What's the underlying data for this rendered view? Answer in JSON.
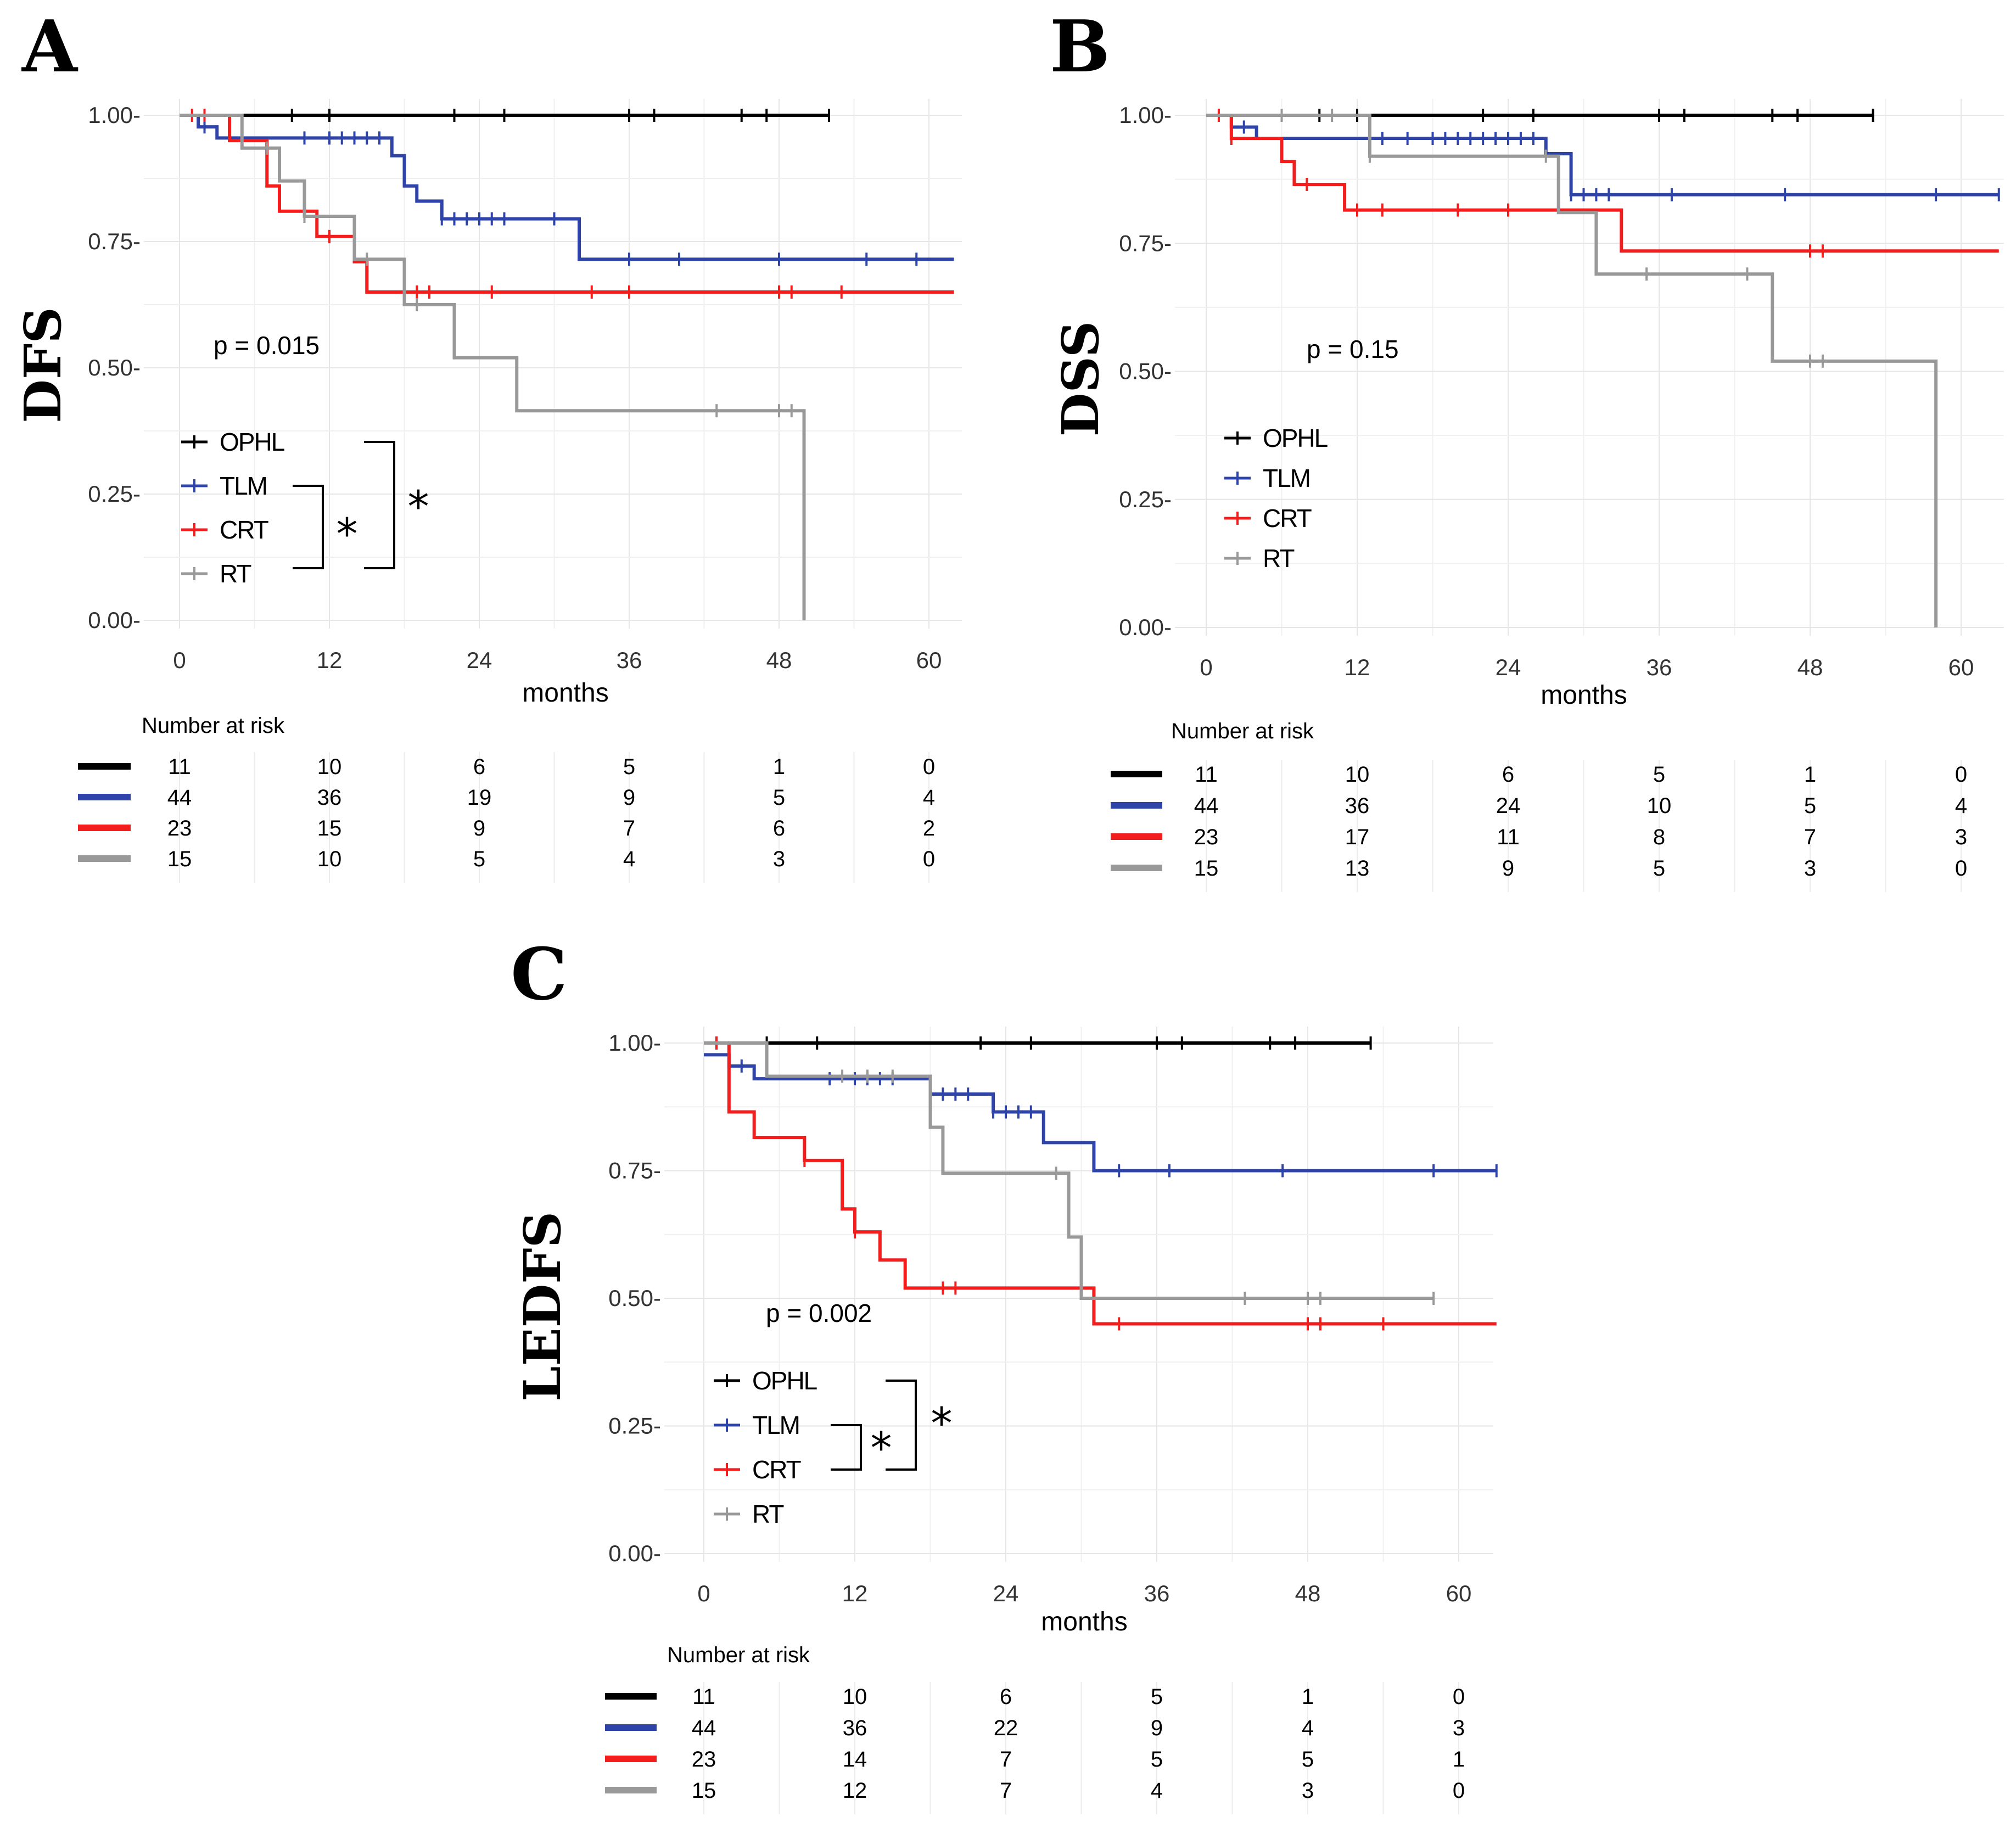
{
  "colors": {
    "OPHL": "#000000",
    "TLM": "#2e44a8",
    "CRT": "#f21d1d",
    "RT": "#999999"
  },
  "chart_data": [
    {
      "panel": "A",
      "type": "line",
      "title": "",
      "ylabel": "DFS",
      "xlabel": "months",
      "xlim": [
        0,
        62
      ],
      "ylim": [
        0,
        1
      ],
      "xticks": [
        "0",
        "12",
        "24",
        "36",
        "48",
        "60"
      ],
      "yticks": [
        "0.00",
        "0.25",
        "0.50",
        "0.75",
        "1.00"
      ],
      "grid": true,
      "p_value": "p = 0.015",
      "legend": [
        "OPHL",
        "TLM",
        "CRT",
        "RT"
      ],
      "significance": [
        "*",
        "*"
      ],
      "series": [
        {
          "name": "OPHL",
          "steps": [
            [
              0,
              1.0
            ],
            [
              52,
              1.0
            ]
          ],
          "censors": [
            9,
            12,
            22,
            26,
            36,
            38,
            45,
            47,
            52
          ]
        },
        {
          "name": "TLM",
          "steps": [
            [
              0,
              1.0
            ],
            [
              1.5,
              0.977
            ],
            [
              3,
              0.955
            ],
            [
              17,
              0.92
            ],
            [
              18,
              0.86
            ],
            [
              19,
              0.83
            ],
            [
              21,
              0.795
            ],
            [
              32,
              0.715
            ],
            [
              62,
              0.715
            ]
          ],
          "censors": [
            2,
            10,
            12,
            13,
            14,
            15,
            16,
            21,
            22,
            23,
            24,
            25,
            26,
            30,
            36,
            40,
            48,
            55,
            59
          ]
        },
        {
          "name": "CRT",
          "steps": [
            [
              0,
              1.0
            ],
            [
              4,
              0.95
            ],
            [
              7,
              0.86
            ],
            [
              8,
              0.81
            ],
            [
              11,
              0.76
            ],
            [
              14,
              0.71
            ],
            [
              15,
              0.65
            ],
            [
              62,
              0.65
            ]
          ],
          "censors": [
            1,
            2,
            12,
            19,
            20,
            25,
            33,
            36,
            48,
            49,
            53
          ]
        },
        {
          "name": "RT",
          "steps": [
            [
              0,
              1.0
            ],
            [
              5,
              0.935
            ],
            [
              8,
              0.87
            ],
            [
              10,
              0.8
            ],
            [
              14,
              0.715
            ],
            [
              18,
              0.625
            ],
            [
              22,
              0.52
            ],
            [
              27,
              0.415
            ],
            [
              50,
              0.0
            ]
          ],
          "censors": [
            7,
            10,
            15,
            19,
            43,
            48,
            49
          ]
        }
      ],
      "risk_table": {
        "title": "Number at risk",
        "times": [
          "0",
          "12",
          "24",
          "36",
          "48",
          "60"
        ],
        "rows": [
          {
            "name": "OPHL",
            "values": [
              "11",
              "10",
              "6",
              "5",
              "1",
              "0"
            ]
          },
          {
            "name": "TLM",
            "values": [
              "44",
              "36",
              "19",
              "9",
              "5",
              "4"
            ]
          },
          {
            "name": "CRT",
            "values": [
              "23",
              "15",
              "9",
              "7",
              "6",
              "2"
            ]
          },
          {
            "name": "RT",
            "values": [
              "15",
              "10",
              "5",
              "4",
              "3",
              "0"
            ]
          }
        ]
      }
    },
    {
      "panel": "B",
      "type": "line",
      "title": "",
      "ylabel": "DSS",
      "xlabel": "months",
      "xlim": [
        0,
        63
      ],
      "ylim": [
        0,
        1
      ],
      "xticks": [
        "0",
        "12",
        "24",
        "36",
        "48",
        "60"
      ],
      "yticks": [
        "0.00",
        "0.25",
        "0.50",
        "0.75",
        "1.00"
      ],
      "grid": true,
      "p_value": "p = 0.15",
      "legend": [
        "OPHL",
        "TLM",
        "CRT",
        "RT"
      ],
      "significance": [],
      "series": [
        {
          "name": "OPHL",
          "steps": [
            [
              0,
              1.0
            ],
            [
              53,
              1.0
            ]
          ],
          "censors": [
            9,
            12,
            22,
            26,
            36,
            38,
            45,
            47,
            53
          ]
        },
        {
          "name": "TLM",
          "steps": [
            [
              0,
              1.0
            ],
            [
              2,
              0.977
            ],
            [
              4,
              0.955
            ],
            [
              27,
              0.925
            ],
            [
              29,
              0.845
            ],
            [
              63,
              0.845
            ]
          ],
          "censors": [
            2,
            3,
            13,
            14,
            16,
            18,
            19,
            20,
            21,
            22,
            23,
            24,
            25,
            26,
            29,
            30,
            31,
            32,
            37,
            46,
            58,
            63
          ]
        },
        {
          "name": "CRT",
          "steps": [
            [
              0,
              1.0
            ],
            [
              2,
              0.955
            ],
            [
              6,
              0.91
            ],
            [
              7,
              0.865
            ],
            [
              11,
              0.815
            ],
            [
              33,
              0.735
            ],
            [
              63,
              0.735
            ]
          ],
          "censors": [
            1,
            2,
            8,
            12,
            14,
            20,
            24,
            48,
            49
          ]
        },
        {
          "name": "RT",
          "steps": [
            [
              0,
              1.0
            ],
            [
              13,
              0.92
            ],
            [
              28,
              0.81
            ],
            [
              31,
              0.69
            ],
            [
              45,
              0.52
            ],
            [
              58,
              0.0
            ]
          ],
          "censors": [
            6,
            10,
            13,
            27,
            35,
            43,
            48,
            49
          ]
        }
      ],
      "risk_table": {
        "title": "Number at risk",
        "times": [
          "0",
          "12",
          "24",
          "36",
          "48",
          "60"
        ],
        "rows": [
          {
            "name": "OPHL",
            "values": [
              "11",
              "10",
              "6",
              "5",
              "1",
              "0"
            ]
          },
          {
            "name": "TLM",
            "values": [
              "44",
              "36",
              "24",
              "10",
              "5",
              "4"
            ]
          },
          {
            "name": "CRT",
            "values": [
              "23",
              "17",
              "11",
              "8",
              "7",
              "3"
            ]
          },
          {
            "name": "RT",
            "values": [
              "15",
              "13",
              "9",
              "5",
              "3",
              "0"
            ]
          }
        ]
      }
    },
    {
      "panel": "C",
      "type": "line",
      "title": "",
      "ylabel": "LEDFS",
      "xlabel": "months",
      "xlim": [
        0,
        63
      ],
      "ylim": [
        0,
        1
      ],
      "xticks": [
        "0",
        "12",
        "24",
        "36",
        "48",
        "60"
      ],
      "yticks": [
        "0.00",
        "0.25",
        "0.50",
        "0.75",
        "1.00"
      ],
      "grid": true,
      "p_value": "p = 0.002",
      "legend": [
        "OPHL",
        "TLM",
        "CRT",
        "RT"
      ],
      "significance": [
        "*",
        "*"
      ],
      "series": [
        {
          "name": "OPHL",
          "steps": [
            [
              0,
              1.0
            ],
            [
              53,
              1.0
            ]
          ],
          "censors": [
            1,
            5,
            9,
            22,
            26,
            36,
            38,
            45,
            47,
            53
          ]
        },
        {
          "name": "TLM",
          "steps": [
            [
              0,
              0.977
            ],
            [
              2,
              0.955
            ],
            [
              4,
              0.93
            ],
            [
              18,
              0.9
            ],
            [
              23,
              0.865
            ],
            [
              27,
              0.805
            ],
            [
              31,
              0.75
            ],
            [
              63,
              0.75
            ]
          ],
          "censors": [
            2,
            3,
            10,
            12,
            13,
            14,
            15,
            19,
            20,
            21,
            23,
            24,
            25,
            26,
            33,
            37,
            46,
            58,
            63
          ]
        },
        {
          "name": "CRT",
          "steps": [
            [
              0,
              1.0
            ],
            [
              2,
              0.865
            ],
            [
              4,
              0.815
            ],
            [
              8,
              0.77
            ],
            [
              11,
              0.675
            ],
            [
              12,
              0.63
            ],
            [
              14,
              0.575
            ],
            [
              16,
              0.52
            ],
            [
              31,
              0.45
            ],
            [
              63,
              0.45
            ]
          ],
          "censors": [
            1,
            8,
            12,
            19,
            20,
            33,
            48,
            49,
            54
          ]
        },
        {
          "name": "RT",
          "steps": [
            [
              0,
              1.0
            ],
            [
              5,
              0.935
            ],
            [
              18,
              0.835
            ],
            [
              19,
              0.745
            ],
            [
              29,
              0.62
            ],
            [
              30,
              0.5
            ],
            [
              58,
              0.5
            ]
          ],
          "censors": [
            11,
            13,
            15,
            28,
            43,
            48,
            49,
            58
          ]
        }
      ],
      "risk_table": {
        "title": "Number at risk",
        "times": [
          "0",
          "12",
          "24",
          "36",
          "48",
          "60"
        ],
        "rows": [
          {
            "name": "OPHL",
            "values": [
              "11",
              "10",
              "6",
              "5",
              "1",
              "0"
            ]
          },
          {
            "name": "TLM",
            "values": [
              "44",
              "36",
              "22",
              "9",
              "4",
              "3"
            ]
          },
          {
            "name": "CRT",
            "values": [
              "23",
              "14",
              "7",
              "5",
              "5",
              "1"
            ]
          },
          {
            "name": "RT",
            "values": [
              "15",
              "12",
              "7",
              "4",
              "3",
              "0"
            ]
          }
        ]
      }
    }
  ]
}
